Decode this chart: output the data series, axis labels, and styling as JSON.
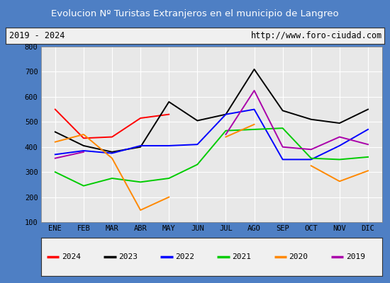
{
  "title": "Evolucion Nº Turistas Extranjeros en el municipio de Langreo",
  "subtitle_left": "2019 - 2024",
  "subtitle_right": "http://www.foro-ciudad.com",
  "months": [
    "ENE",
    "FEB",
    "MAR",
    "ABR",
    "MAY",
    "JUN",
    "JUL",
    "AGO",
    "SEP",
    "OCT",
    "NOV",
    "DIC"
  ],
  "ylim": [
    100,
    800
  ],
  "yticks": [
    100,
    200,
    300,
    400,
    500,
    600,
    700,
    800
  ],
  "series": {
    "2024": {
      "color": "#ff0000",
      "data": [
        550,
        435,
        440,
        515,
        530,
        null,
        null,
        null,
        null,
        null,
        null,
        null
      ]
    },
    "2023": {
      "color": "#000000",
      "data": [
        460,
        405,
        380,
        400,
        580,
        505,
        530,
        710,
        545,
        510,
        495,
        550
      ]
    },
    "2022": {
      "color": "#0000ff",
      "data": [
        370,
        385,
        375,
        405,
        405,
        410,
        530,
        550,
        350,
        350,
        405,
        470
      ]
    },
    "2021": {
      "color": "#00cc00",
      "data": [
        300,
        245,
        275,
        260,
        275,
        330,
        465,
        470,
        475,
        355,
        350,
        360
      ]
    },
    "2020": {
      "color": "#ff8800",
      "data": [
        420,
        450,
        355,
        148,
        200,
        null,
        440,
        490,
        null,
        325,
        263,
        305
      ]
    },
    "2019": {
      "color": "#aa00aa",
      "data": [
        355,
        380,
        null,
        null,
        null,
        null,
        450,
        625,
        400,
        390,
        440,
        410
      ]
    }
  },
  "title_bg_color": "#4e7fc4",
  "title_text_color": "#ffffff",
  "subtitle_bg_color": "#f0f0f0",
  "plot_bg_color": "#e8e8e8",
  "grid_color": "#ffffff",
  "border_color": "#555555",
  "legend_bg_color": "#f0f0f0"
}
